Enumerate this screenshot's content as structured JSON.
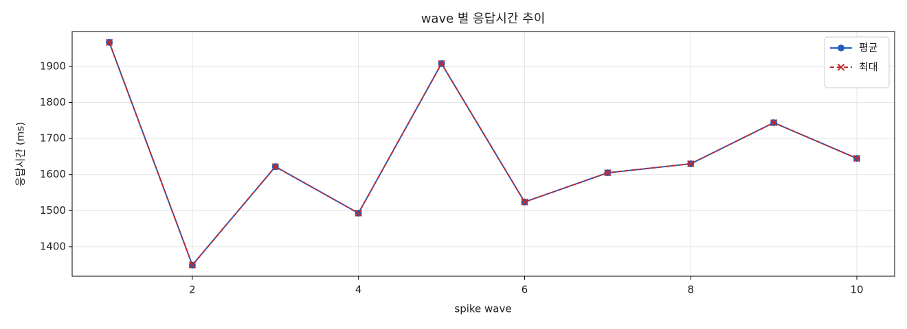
{
  "chart_data": {
    "type": "line",
    "title": "wave 별 응답시간 추이",
    "x_label": "spike wave",
    "y_label": "응답시간 (ms)",
    "x": [
      1,
      2,
      3,
      4,
      5,
      6,
      7,
      8,
      9,
      10
    ],
    "series": [
      {
        "name": "평균",
        "color": "#1f5fbf",
        "marker": "o",
        "linestyle": "solid",
        "values": [
          1967,
          1349,
          1622,
          1493,
          1908,
          1524,
          1605,
          1630,
          1744,
          1645
        ]
      },
      {
        "name": "최대",
        "color": "#c62828",
        "marker": "x",
        "linestyle": "dashed",
        "values": [
          1967,
          1349,
          1622,
          1493,
          1908,
          1524,
          1605,
          1630,
          1744,
          1645
        ]
      }
    ],
    "xlim": [
      0.553,
      10.455
    ],
    "xticks": [
      2,
      4,
      6,
      8,
      10
    ],
    "ylim": [
      1318,
      1997
    ],
    "yticks": [
      1400,
      1500,
      1600,
      1700,
      1800,
      1900
    ],
    "grid": true,
    "legend": "upper right"
  }
}
